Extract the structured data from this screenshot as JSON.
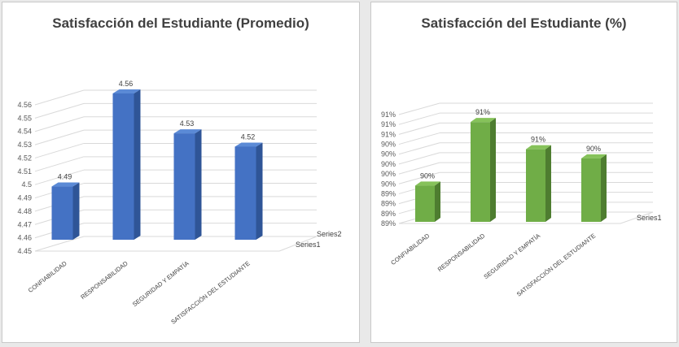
{
  "chart_data": [
    {
      "type": "bar",
      "title": "Satisfacción del Estudiante (Promedio)",
      "categories": [
        "CONFIABILIDAD",
        "RESPONSABILIDAD",
        "SEGURIDAD Y EMPATÍA",
        "SATISFACCIÓN DEL ESTUDIANTE"
      ],
      "series": [
        {
          "name": "Series1",
          "values": [
            4.49,
            4.56,
            4.53,
            4.52
          ],
          "labels": [
            "4.49",
            "4.56",
            "4.53",
            "4.52"
          ]
        }
      ],
      "depth_series": [
        "Series2",
        "Series1"
      ],
      "ylim": [
        4.45,
        4.56
      ],
      "yticks": [
        "4.45",
        "4.46",
        "4.47",
        "4.48",
        "4.49",
        "4.5",
        "4.51",
        "4.52",
        "4.53",
        "4.54",
        "4.55",
        "4.56"
      ],
      "grid": true,
      "colors": {
        "bar": "#4472c4",
        "bar_dark": "#2f5597",
        "bar_top": "#5b8ad6"
      }
    },
    {
      "type": "bar",
      "title": "Satisfacción del Estudiante (%)",
      "categories": [
        "CONFIABILIDAD",
        "RESPONSABILIDAD",
        "SEGURIDAD Y EMPATÍA",
        "SATISFACCIÓN DEL ESTUDIANTE"
      ],
      "series": [
        {
          "name": "Series1",
          "values": [
            89.8,
            91.2,
            90.6,
            90.4
          ],
          "labels": [
            "90%",
            "91%",
            "91%",
            "90%"
          ]
        }
      ],
      "depth_series": [
        "Series1"
      ],
      "ylim": [
        89.0,
        91.4
      ],
      "yticks": [
        "89%",
        "89%",
        "89%",
        "89%",
        "90%",
        "90%",
        "90%",
        "90%",
        "90%",
        "91%",
        "91%",
        "91%"
      ],
      "grid": true,
      "colors": {
        "bar": "#70ad47",
        "bar_dark": "#4e7d30",
        "bar_top": "#86c25a"
      }
    }
  ]
}
